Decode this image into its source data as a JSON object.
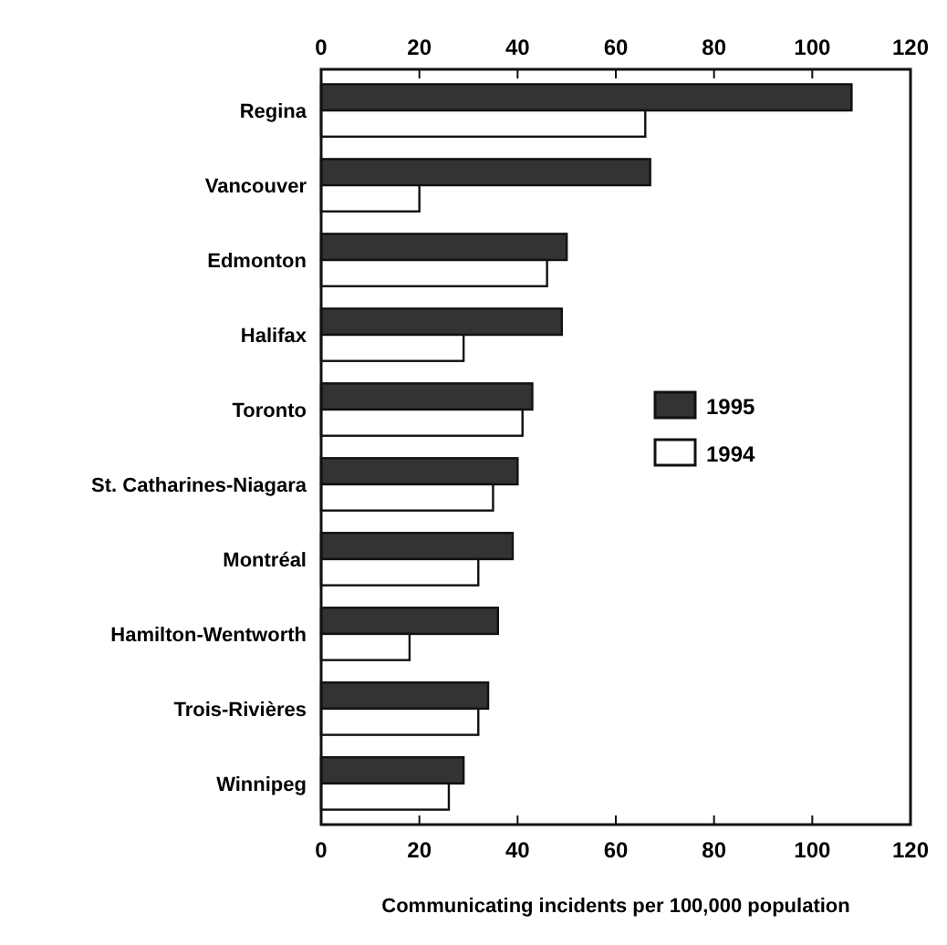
{
  "chart_data": {
    "type": "bar",
    "orientation": "horizontal",
    "xlabel": "Communicating incidents per 100,000 population",
    "categories": [
      "Regina",
      "Vancouver",
      "Edmonton",
      "Halifax",
      "Toronto",
      "St. Catharines-Niagara",
      "Montréal",
      "Hamilton-Wentworth",
      "Trois-Rivières",
      "Winnipeg"
    ],
    "series": [
      {
        "name": "1995",
        "color": "#333333",
        "values": [
          108,
          67,
          50,
          49,
          43,
          40,
          39,
          36,
          34,
          29
        ]
      },
      {
        "name": "1994",
        "color": "#ffffff",
        "values": [
          66,
          20,
          46,
          29,
          41,
          35,
          32,
          18,
          32,
          26
        ]
      }
    ],
    "xlim": [
      0,
      120
    ],
    "xticks": [
      0,
      20,
      40,
      60,
      80,
      100,
      120
    ],
    "x2lim": [
      0,
      120
    ],
    "x2ticks": [
      0,
      20,
      40,
      60,
      80,
      100,
      120
    ],
    "legend": "right",
    "grid": false
  }
}
